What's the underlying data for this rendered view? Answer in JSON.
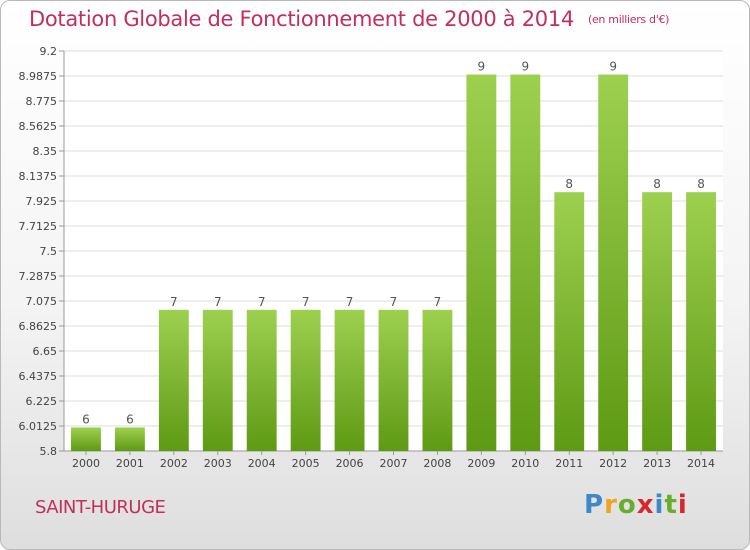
{
  "title": "Dotation Globale de Fonctionnement de 2000 à 2014",
  "unit": "(en milliers d'€)",
  "commune": "SAINT-HURUGE",
  "logo": {
    "letters": [
      "P",
      "r",
      "o",
      "x",
      "i",
      "t",
      "i"
    ],
    "colors": [
      "#3c88c8",
      "#f2a21b",
      "#69ad2c",
      "#d8262b"
    ]
  },
  "chart_data": {
    "type": "bar",
    "title": "Dotation Globale de Fonctionnement de 2000 à 2014",
    "xlabel": "",
    "ylabel": "",
    "categories": [
      "2000",
      "2001",
      "2002",
      "2003",
      "2004",
      "2005",
      "2006",
      "2007",
      "2008",
      "2009",
      "2010",
      "2011",
      "2012",
      "2013",
      "2014"
    ],
    "values": [
      6,
      6,
      7,
      7,
      7,
      7,
      7,
      7,
      7,
      9,
      9,
      8,
      9,
      8,
      8
    ],
    "data_labels": [
      "6",
      "6",
      "7",
      "7",
      "7",
      "7",
      "7",
      "7",
      "7",
      "9",
      "9",
      "8",
      "9",
      "8",
      "8"
    ],
    "bar_tops": [
      6.0,
      6.0,
      7.0,
      7.0,
      7.0,
      7.0,
      7.0,
      7.0,
      7.0,
      9.0,
      9.0,
      8.0,
      9.0,
      8.0,
      8.0
    ],
    "ylim": [
      5.8,
      9.2
    ],
    "yticks": [
      5.8,
      6.0125,
      6.225,
      6.4375,
      6.65,
      6.8625,
      7.075,
      7.2875,
      7.5,
      7.7125,
      7.925,
      8.1375,
      8.35,
      8.5625,
      8.775,
      8.9875,
      9.2
    ],
    "ytick_labels": [
      "5.8",
      "6.0125",
      "6.225",
      "6.4375",
      "6.65",
      "6.8625",
      "7.075",
      "7.2875",
      "7.5",
      "7.7125",
      "7.925",
      "8.1375",
      "8.35",
      "8.5625",
      "8.775",
      "8.9875",
      "9.2"
    ],
    "grid": true,
    "colors": {
      "bar_light": "#9ed050",
      "bar_dark": "#5e9a14",
      "label": "#555555",
      "grid": "#dcdcdc",
      "axis": "#9a9a9a"
    }
  }
}
